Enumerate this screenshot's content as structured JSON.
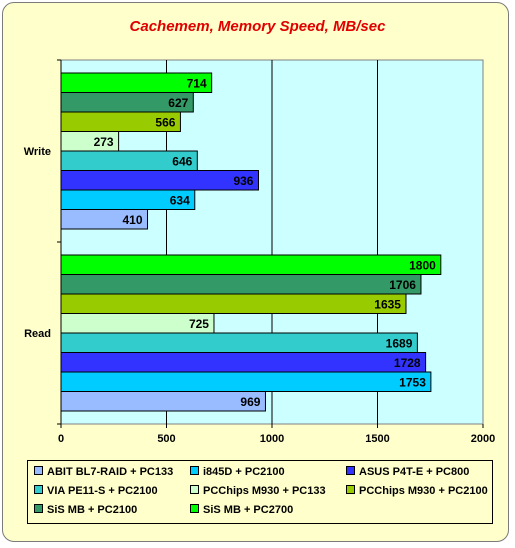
{
  "title": "Cachemem, Memory Speed, MB/sec",
  "colors": {
    "plot_bg": "#ccffff",
    "background": "#ffffcc",
    "title": "#e00000"
  },
  "chart_data": {
    "type": "bar",
    "orientation": "horizontal",
    "title": "Cachemem, Memory Speed, MB/sec",
    "categories": [
      "Write",
      "Read"
    ],
    "xlim": [
      0,
      2000
    ],
    "xticks": [
      0,
      500,
      1000,
      1500,
      2000
    ],
    "grid": true,
    "legend_position": "bottom",
    "series": [
      {
        "name": "ABIT BL7-RAID + PC133",
        "color": "#99bbff",
        "values": [
          410,
          969
        ]
      },
      {
        "name": "i845D + PC2100",
        "color": "#00ccff",
        "values": [
          634,
          1753
        ]
      },
      {
        "name": "ASUS P4T-E + PC800",
        "color": "#3333ff",
        "values": [
          936,
          1728
        ]
      },
      {
        "name": "VIA PE11-S + PC2100",
        "color": "#33cccc",
        "values": [
          646,
          1689
        ]
      },
      {
        "name": "PCChips M930 + PC133",
        "color": "#ccffcc",
        "values": [
          273,
          725
        ]
      },
      {
        "name": "PCChips M930 + PC2100",
        "color": "#99cc00",
        "values": [
          566,
          1635
        ]
      },
      {
        "name": "SiS MB + PC2100",
        "color": "#339966",
        "values": [
          627,
          1706
        ]
      },
      {
        "name": "SiS MB + PC2700",
        "color": "#00ff00",
        "values": [
          714,
          1800
        ]
      }
    ]
  }
}
